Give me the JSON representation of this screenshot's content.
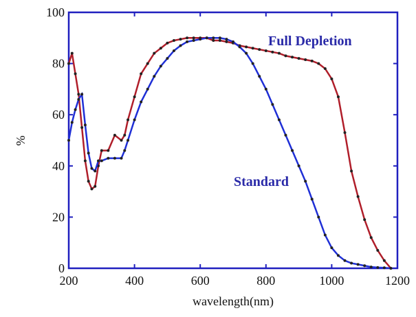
{
  "chart_data": {
    "type": "line",
    "xlabel": "wavelength(nm)",
    "ylabel": "%",
    "x": [
      200,
      210,
      220,
      230,
      240,
      250,
      260,
      270,
      280,
      290,
      300,
      320,
      340,
      360,
      370,
      380,
      400,
      420,
      440,
      460,
      480,
      500,
      520,
      540,
      560,
      580,
      600,
      620,
      640,
      660,
      680,
      700,
      720,
      740,
      760,
      780,
      800,
      820,
      840,
      860,
      880,
      900,
      920,
      940,
      960,
      980,
      1000,
      1020,
      1040,
      1060,
      1080,
      1100,
      1120,
      1140,
      1160,
      1180
    ],
    "series": [
      {
        "name": "Full Depletion",
        "color": "#b01e2a",
        "values": [
          80,
          84,
          76,
          68,
          55,
          42,
          34,
          31,
          32,
          40,
          46,
          46,
          52,
          50,
          52,
          58,
          67,
          76,
          80,
          84,
          86,
          88,
          89,
          89.5,
          90,
          90,
          90,
          90,
          89,
          89,
          88.5,
          88,
          87,
          86.5,
          86,
          85.5,
          85,
          84.5,
          84,
          83,
          82.5,
          82,
          81.5,
          81,
          80,
          78,
          74,
          67,
          53,
          38,
          28,
          19,
          12,
          7,
          3,
          0
        ]
      },
      {
        "name": "Standard",
        "color": "#1f2fd6",
        "values": [
          50,
          57,
          62,
          66,
          68,
          56,
          45,
          39,
          38,
          42,
          42,
          43,
          43,
          43,
          46,
          50,
          58,
          65,
          70,
          75,
          79,
          82,
          85,
          87,
          88.5,
          89,
          89.5,
          90,
          90,
          90,
          89.5,
          88.5,
          86.5,
          84,
          80,
          75,
          70,
          64,
          58,
          52,
          46,
          40,
          34,
          27,
          20,
          13,
          8,
          5,
          3,
          2,
          1.5,
          1,
          0.5,
          0.3,
          0.2,
          0
        ]
      }
    ],
    "xlim": [
      200,
      1200
    ],
    "ylim": [
      0,
      100
    ],
    "xticks": [
      200,
      400,
      600,
      800,
      1000,
      1200
    ],
    "yticks": [
      0,
      20,
      40,
      60,
      80,
      100
    ]
  }
}
